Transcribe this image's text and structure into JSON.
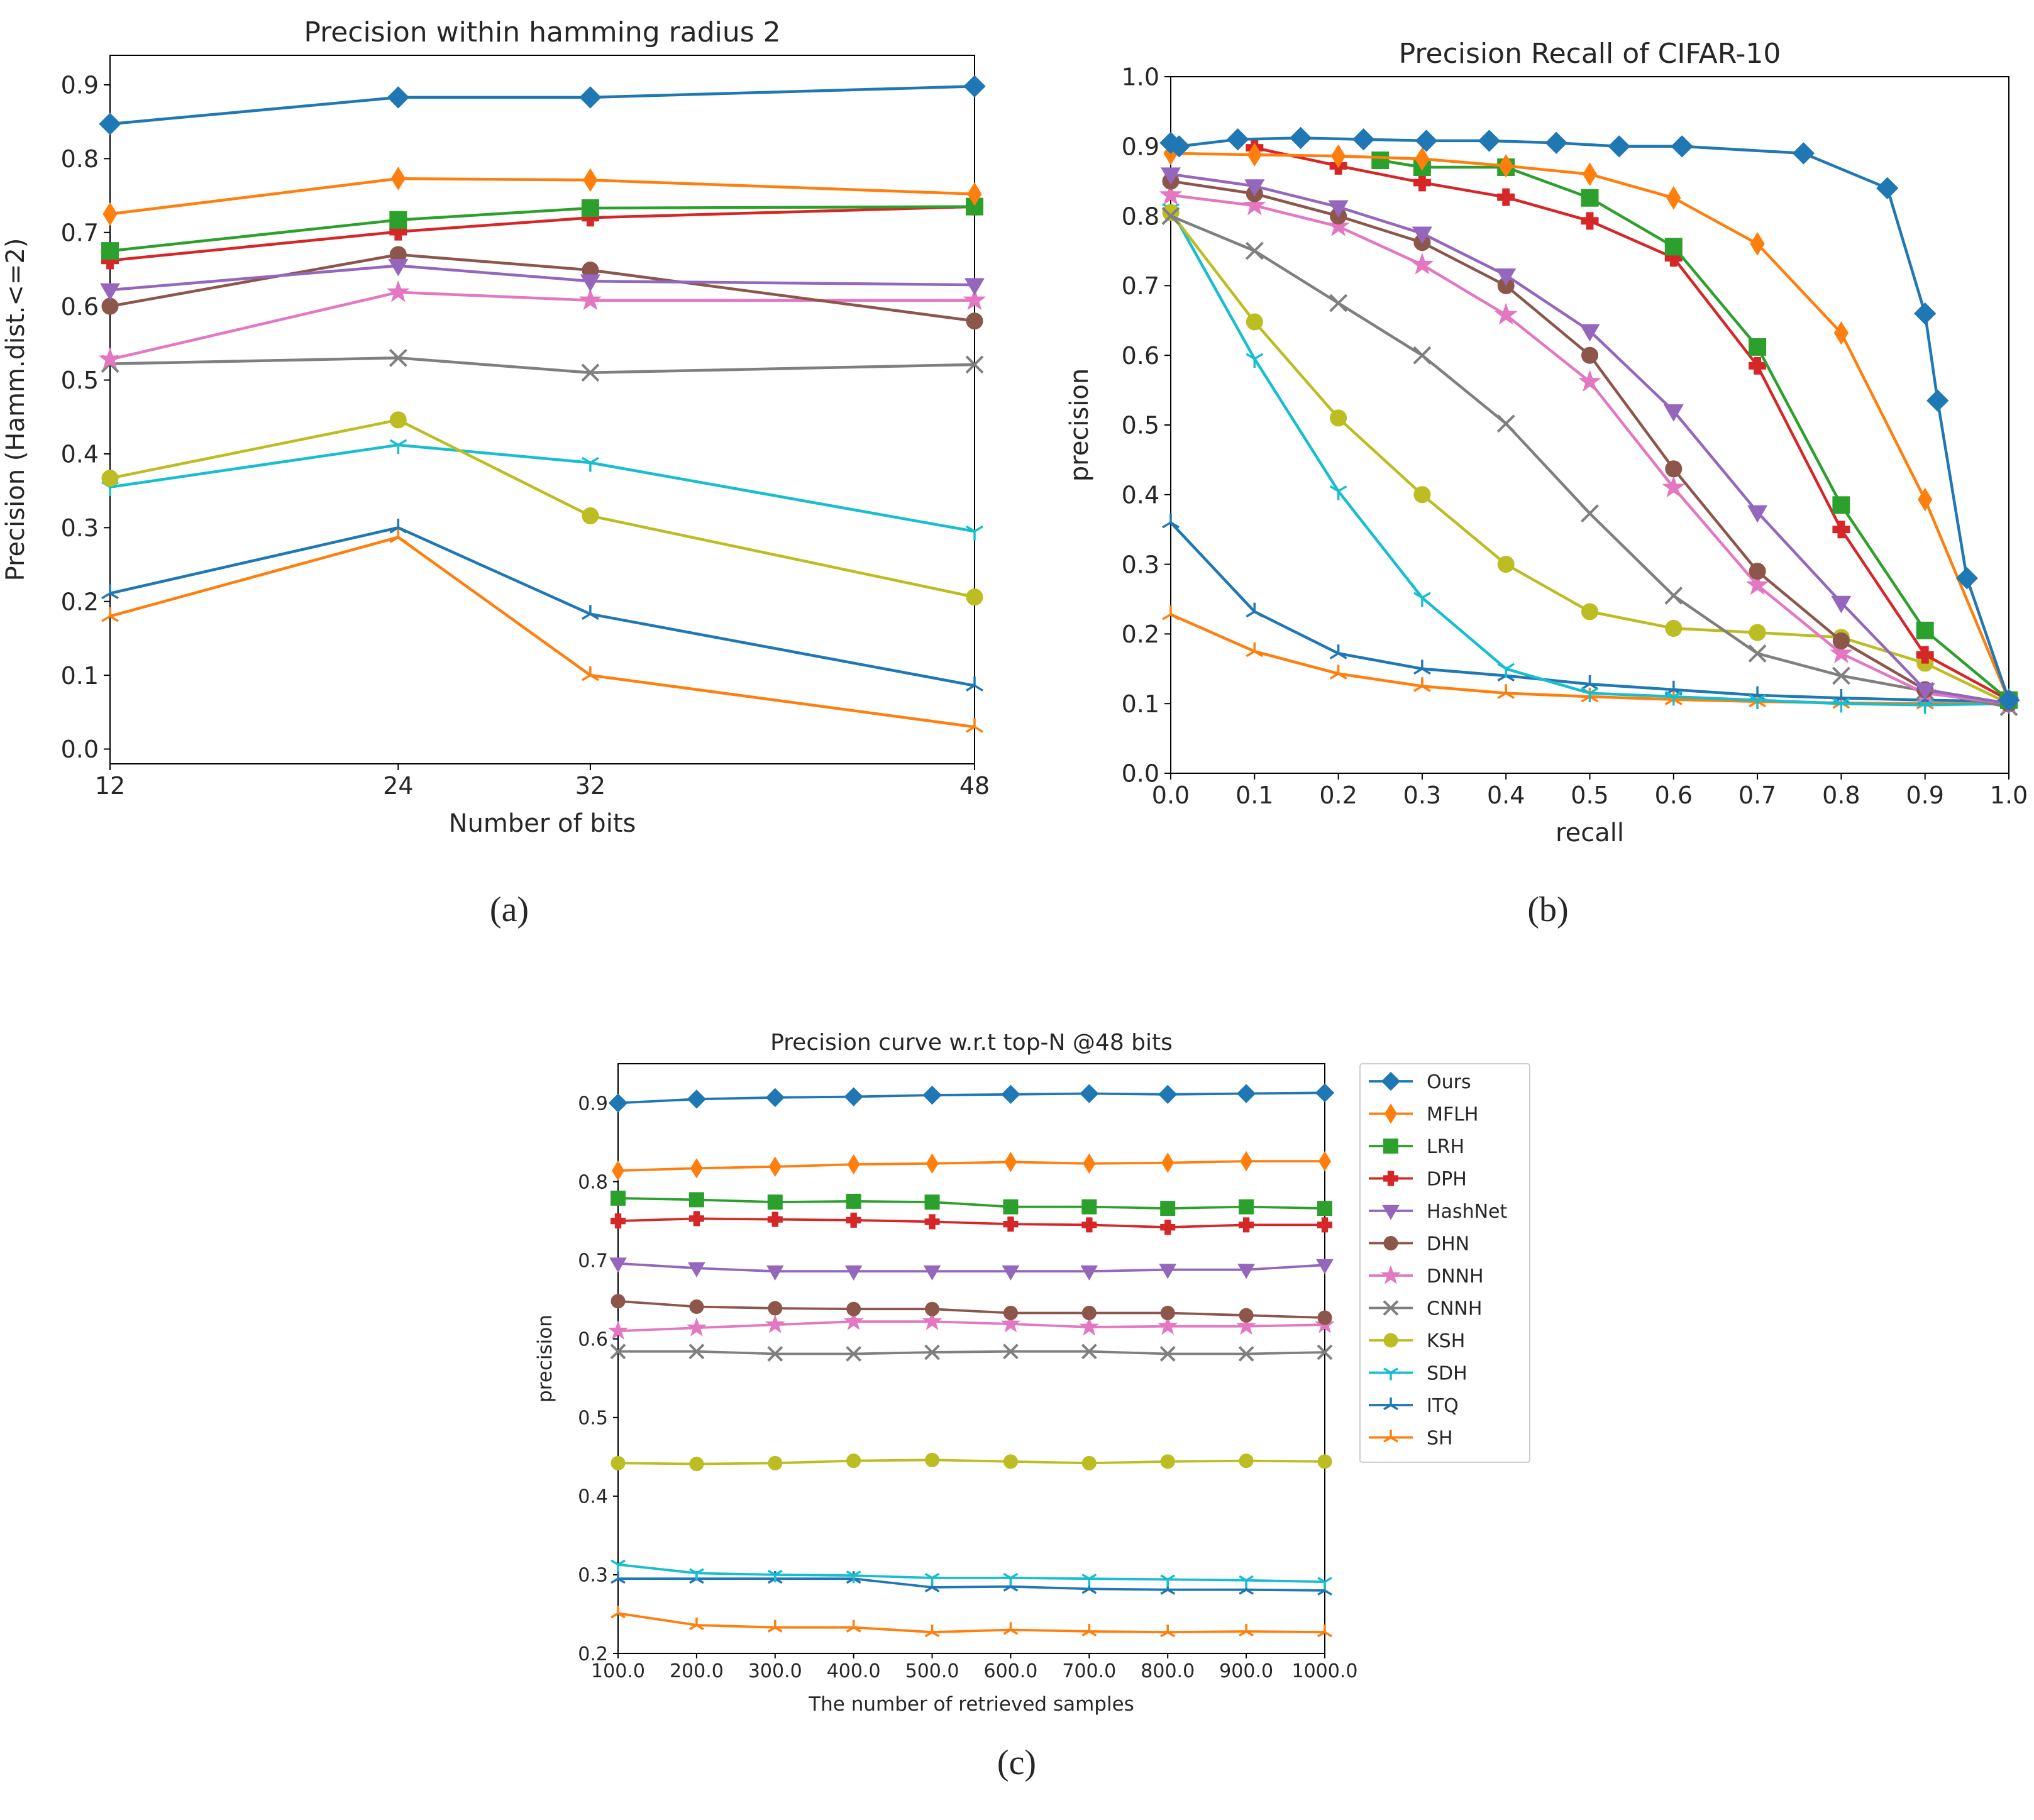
{
  "series_style": [
    {
      "name": "Ours",
      "color": "#1f77b4",
      "marker": "diamond"
    },
    {
      "name": "MFLH",
      "color": "#ff7f0e",
      "marker": "thin_diamond"
    },
    {
      "name": "LRH",
      "color": "#2ca02c",
      "marker": "square"
    },
    {
      "name": "DPH",
      "color": "#d62728",
      "marker": "plus"
    },
    {
      "name": "HashNet",
      "color": "#9467bd",
      "marker": "tri_down"
    },
    {
      "name": "DHN",
      "color": "#8c564b",
      "marker": "circle"
    },
    {
      "name": "DNNH",
      "color": "#e377c2",
      "marker": "star"
    },
    {
      "name": "CNNH",
      "color": "#7f7f7f",
      "marker": "x"
    },
    {
      "name": "KSH",
      "color": "#bcbd22",
      "marker": "circle"
    },
    {
      "name": "SDH",
      "color": "#17becf",
      "marker": "tri_down_thin"
    },
    {
      "name": "ITQ",
      "color": "#1f77b4",
      "marker": "tri_thin"
    },
    {
      "name": "SH",
      "color": "#ff7f0e",
      "marker": "tri_thin"
    }
  ],
  "chart_data": [
    {
      "id": "a",
      "type": "line",
      "title": "Precision within hamming radius 2",
      "xlabel": "Number of bits",
      "ylabel": "Precision (Hamm.dist.<=2)",
      "caption": "(a)",
      "xlim": [
        12,
        48
      ],
      "ylim": [
        -0.02,
        0.94
      ],
      "xticks": [
        12,
        24,
        32,
        48
      ],
      "yticks": [
        0.0,
        0.1,
        0.2,
        0.3,
        0.4,
        0.5,
        0.6,
        0.7,
        0.8,
        0.9
      ],
      "x": [
        12,
        24,
        32,
        48
      ],
      "series": [
        {
          "name": "Ours",
          "values": [
            0.847,
            0.883,
            0.883,
            0.898
          ]
        },
        {
          "name": "MFLH",
          "values": [
            0.725,
            0.773,
            0.771,
            0.752
          ]
        },
        {
          "name": "LRH",
          "values": [
            0.675,
            0.717,
            0.733,
            0.735
          ]
        },
        {
          "name": "DPH",
          "values": [
            0.662,
            0.701,
            0.72,
            0.735
          ]
        },
        {
          "name": "HashNet",
          "values": [
            0.622,
            0.655,
            0.634,
            0.629
          ]
        },
        {
          "name": "DHN",
          "values": [
            0.6,
            0.67,
            0.649,
            0.58
          ]
        },
        {
          "name": "DNNH",
          "values": [
            0.528,
            0.619,
            0.608,
            0.608
          ]
        },
        {
          "name": "CNNH",
          "values": [
            0.522,
            0.53,
            0.51,
            0.521
          ]
        },
        {
          "name": "KSH",
          "values": [
            0.367,
            0.446,
            0.316,
            0.206
          ]
        },
        {
          "name": "SDH",
          "values": [
            0.355,
            0.412,
            0.388,
            0.295
          ]
        },
        {
          "name": "ITQ",
          "values": [
            0.211,
            0.3,
            0.183,
            0.086
          ]
        },
        {
          "name": "SH",
          "values": [
            0.18,
            0.287,
            0.1,
            0.03
          ]
        }
      ]
    },
    {
      "id": "b",
      "type": "line",
      "title": "Precision Recall of CIFAR-10",
      "xlabel": "recall",
      "ylabel": "precision",
      "caption": "(b)",
      "xlim": [
        0.0,
        1.0
      ],
      "ylim": [
        0.0,
        1.0
      ],
      "xticks": [
        0.0,
        0.1,
        0.2,
        0.3,
        0.4,
        0.5,
        0.6,
        0.7,
        0.8,
        0.9,
        1.0
      ],
      "yticks": [
        0.0,
        0.1,
        0.2,
        0.3,
        0.4,
        0.5,
        0.6,
        0.7,
        0.8,
        0.9,
        1.0
      ],
      "tick_decimals": 1,
      "series": [
        {
          "name": "Ours",
          "x": [
            0.0,
            0.01,
            0.08,
            0.155,
            0.23,
            0.305,
            0.38,
            0.46,
            0.535,
            0.61,
            0.755,
            0.855,
            0.9,
            0.915,
            0.95,
            1.0
          ],
          "y": [
            0.905,
            0.9,
            0.91,
            0.912,
            0.91,
            0.908,
            0.908,
            0.905,
            0.9,
            0.9,
            0.89,
            0.84,
            0.66,
            0.535,
            0.28,
            0.105
          ]
        },
        {
          "name": "MFLH",
          "x": [
            0.0,
            0.1,
            0.2,
            0.3,
            0.4,
            0.5,
            0.6,
            0.7,
            0.8,
            0.9,
            1.0
          ],
          "y": [
            0.89,
            0.888,
            0.886,
            0.882,
            0.872,
            0.86,
            0.826,
            0.76,
            0.632,
            0.393,
            0.105
          ]
        },
        {
          "name": "LRH",
          "x": [
            0.25,
            0.3,
            0.4,
            0.5,
            0.6,
            0.7,
            0.8,
            0.9,
            1.0
          ],
          "y": [
            0.88,
            0.87,
            0.87,
            0.826,
            0.756,
            0.612,
            0.385,
            0.205,
            0.105
          ]
        },
        {
          "name": "DPH",
          "x": [
            0.1,
            0.2,
            0.3,
            0.4,
            0.5,
            0.6,
            0.7,
            0.8,
            0.9,
            1.0
          ],
          "y": [
            0.898,
            0.872,
            0.848,
            0.827,
            0.793,
            0.74,
            0.585,
            0.35,
            0.17,
            0.105
          ]
        },
        {
          "name": "HashNet",
          "x": [
            0.0,
            0.1,
            0.2,
            0.3,
            0.4,
            0.5,
            0.6,
            0.7,
            0.8,
            0.9,
            1.0
          ],
          "y": [
            0.86,
            0.843,
            0.813,
            0.775,
            0.715,
            0.635,
            0.52,
            0.375,
            0.245,
            0.12,
            0.1
          ]
        },
        {
          "name": "DHN",
          "x": [
            0.0,
            0.1,
            0.2,
            0.3,
            0.4,
            0.5,
            0.6,
            0.7,
            0.8,
            0.9,
            1.0
          ],
          "y": [
            0.85,
            0.832,
            0.8,
            0.762,
            0.7,
            0.6,
            0.437,
            0.29,
            0.19,
            0.12,
            0.1
          ]
        },
        {
          "name": "DNNH",
          "x": [
            0.0,
            0.1,
            0.2,
            0.3,
            0.4,
            0.5,
            0.6,
            0.7,
            0.8,
            0.9,
            1.0
          ],
          "y": [
            0.83,
            0.815,
            0.785,
            0.73,
            0.658,
            0.562,
            0.41,
            0.27,
            0.172,
            0.115,
            0.1
          ]
        },
        {
          "name": "CNNH",
          "x": [
            0.0,
            0.1,
            0.2,
            0.3,
            0.4,
            0.5,
            0.6,
            0.7,
            0.8,
            0.9,
            1.0
          ],
          "y": [
            0.8,
            0.75,
            0.675,
            0.6,
            0.502,
            0.373,
            0.255,
            0.172,
            0.14,
            0.118,
            0.095
          ]
        },
        {
          "name": "KSH",
          "x": [
            0.0,
            0.1,
            0.2,
            0.3,
            0.4,
            0.5,
            0.6,
            0.7,
            0.8,
            0.9,
            1.0
          ],
          "y": [
            0.805,
            0.648,
            0.51,
            0.4,
            0.3,
            0.232,
            0.208,
            0.202,
            0.195,
            0.158,
            0.1
          ]
        },
        {
          "name": "SDH",
          "x": [
            0.0,
            0.1,
            0.2,
            0.3,
            0.4,
            0.5,
            0.6,
            0.7,
            0.8,
            0.9,
            1.0
          ],
          "y": [
            0.81,
            0.595,
            0.405,
            0.252,
            0.15,
            0.115,
            0.11,
            0.105,
            0.1,
            0.098,
            0.1
          ]
        },
        {
          "name": "ITQ",
          "x": [
            0.0,
            0.1,
            0.2,
            0.3,
            0.4,
            0.5,
            0.6,
            0.7,
            0.8,
            0.9,
            1.0
          ],
          "y": [
            0.36,
            0.232,
            0.172,
            0.15,
            0.14,
            0.128,
            0.12,
            0.112,
            0.108,
            0.105,
            0.103
          ]
        },
        {
          "name": "SH",
          "x": [
            0.0,
            0.1,
            0.2,
            0.3,
            0.4,
            0.5,
            0.6,
            0.7,
            0.8,
            0.9,
            1.0
          ],
          "y": [
            0.228,
            0.175,
            0.143,
            0.125,
            0.115,
            0.11,
            0.106,
            0.103,
            0.101,
            0.1,
            0.1
          ]
        }
      ]
    },
    {
      "id": "c",
      "type": "line",
      "title": "Precision curve w.r.t top-N @48 bits",
      "xlabel": "The number of retrieved samples",
      "ylabel": "precision",
      "caption": "(c)",
      "xlim": [
        100,
        1000
      ],
      "ylim": [
        0.2,
        0.95
      ],
      "xticks": [
        100,
        200,
        300,
        400,
        500,
        600,
        700,
        800,
        900,
        1000
      ],
      "yticks": [
        0.2,
        0.3,
        0.4,
        0.5,
        0.6,
        0.7,
        0.8,
        0.9
      ],
      "tick_decimals": 1,
      "legend": "right-outside",
      "x": [
        100,
        200,
        300,
        400,
        500,
        600,
        700,
        800,
        900,
        1000
      ],
      "series": [
        {
          "name": "Ours",
          "values": [
            0.9,
            0.905,
            0.907,
            0.908,
            0.91,
            0.911,
            0.912,
            0.911,
            0.912,
            0.913
          ]
        },
        {
          "name": "MFLH",
          "values": [
            0.814,
            0.817,
            0.819,
            0.822,
            0.823,
            0.825,
            0.823,
            0.824,
            0.826,
            0.826
          ]
        },
        {
          "name": "LRH",
          "values": [
            0.779,
            0.777,
            0.774,
            0.775,
            0.774,
            0.768,
            0.768,
            0.766,
            0.768,
            0.766
          ]
        },
        {
          "name": "DPH",
          "values": [
            0.75,
            0.753,
            0.752,
            0.751,
            0.749,
            0.746,
            0.745,
            0.742,
            0.745,
            0.745
          ]
        },
        {
          "name": "HashNet",
          "values": [
            0.696,
            0.69,
            0.686,
            0.686,
            0.686,
            0.686,
            0.686,
            0.688,
            0.688,
            0.694
          ]
        },
        {
          "name": "DHN",
          "values": [
            0.648,
            0.641,
            0.639,
            0.638,
            0.638,
            0.633,
            0.633,
            0.633,
            0.63,
            0.627
          ]
        },
        {
          "name": "DNNH",
          "values": [
            0.61,
            0.614,
            0.618,
            0.622,
            0.622,
            0.619,
            0.615,
            0.616,
            0.616,
            0.618
          ]
        },
        {
          "name": "CNNH",
          "values": [
            0.584,
            0.584,
            0.581,
            0.581,
            0.583,
            0.584,
            0.584,
            0.581,
            0.581,
            0.583
          ]
        },
        {
          "name": "KSH",
          "values": [
            0.442,
            0.441,
            0.442,
            0.445,
            0.446,
            0.444,
            0.442,
            0.444,
            0.445,
            0.444
          ]
        },
        {
          "name": "SDH",
          "values": [
            0.313,
            0.302,
            0.3,
            0.299,
            0.296,
            0.296,
            0.295,
            0.294,
            0.293,
            0.291
          ]
        },
        {
          "name": "ITQ",
          "values": [
            0.295,
            0.295,
            0.295,
            0.295,
            0.284,
            0.285,
            0.282,
            0.281,
            0.281,
            0.28
          ]
        },
        {
          "name": "SH",
          "values": [
            0.251,
            0.236,
            0.233,
            0.233,
            0.227,
            0.23,
            0.228,
            0.227,
            0.228,
            0.227
          ]
        }
      ]
    }
  ]
}
